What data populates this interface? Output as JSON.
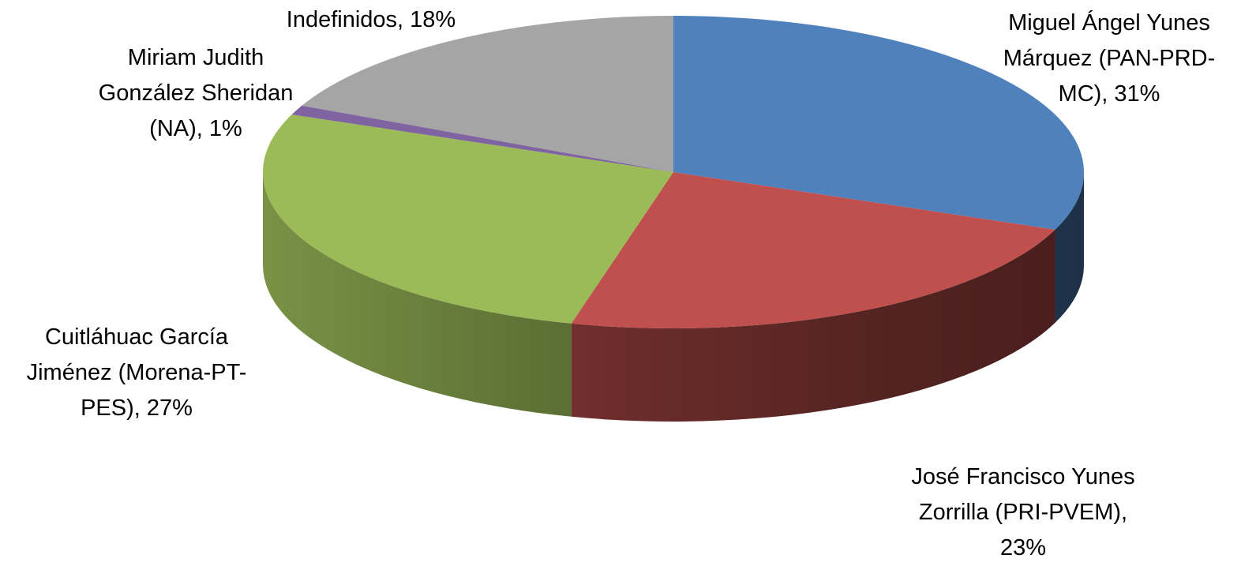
{
  "chart_data": {
    "type": "pie",
    "style": "3d",
    "title": "",
    "slices": [
      {
        "name": "Miguel Ángel Yunes Márquez (PAN-PRD-MC)",
        "value": 31,
        "label_lines": [
          "Miguel Ángel Yunes",
          "Márquez (PAN-PRD-",
          "MC), 31%"
        ],
        "color": "#4F81BD"
      },
      {
        "name": "José Francisco Yunes Zorrilla (PRI-PVEM)",
        "value": 23,
        "label_lines": [
          "José Francisco Yunes",
          "Zorrilla (PRI-PVEM),",
          "23%"
        ],
        "color": "#C0504D"
      },
      {
        "name": "Cuitláhuac García Jiménez (Morena-PT-PES)",
        "value": 27,
        "label_lines": [
          "Cuitláhuac García",
          "Jiménez (Morena-PT-",
          "PES), 27%"
        ],
        "color": "#9BBB59"
      },
      {
        "name": "Miriam Judith González Sheridan (NA)",
        "value": 1,
        "label_lines": [
          "Miriam Judith",
          "González Sheridan",
          "(NA), 1%"
        ],
        "color": "#8064A2"
      },
      {
        "name": "Indefinidos",
        "value": 18,
        "label_lines": [
          "Indefinidos, 18%"
        ],
        "color": "#A5A5A5"
      }
    ]
  }
}
